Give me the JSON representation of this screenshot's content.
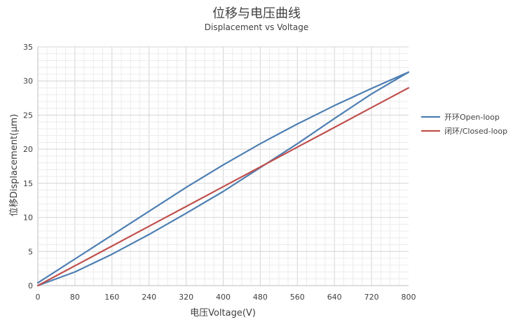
{
  "chart_data": {
    "type": "line",
    "title": "位移与电压曲线",
    "subtitle": "Displacement vs Voltage",
    "xlabel": "电压Voltage(V)",
    "ylabel": "位移Displacement(μm)",
    "xlim": [
      0,
      800
    ],
    "ylim": [
      0,
      35
    ],
    "xticks": [
      0,
      80,
      160,
      240,
      320,
      400,
      480,
      560,
      640,
      720,
      800
    ],
    "yticks": [
      0,
      5,
      10,
      15,
      20,
      25,
      30,
      35
    ],
    "grid": true,
    "legend_position": "right",
    "series": [
      {
        "name": "开环Open-loop",
        "color": "#4e7fb3",
        "x": [
          0,
          80,
          160,
          240,
          320,
          400,
          480,
          560,
          640,
          720,
          800,
          720,
          640,
          560,
          480,
          400,
          320,
          240,
          160,
          80,
          0
        ],
        "y": [
          0.4,
          3.9,
          7.4,
          10.9,
          14.4,
          17.7,
          20.8,
          23.7,
          26.4,
          28.9,
          31.3,
          28.1,
          24.5,
          20.8,
          17.3,
          13.8,
          10.6,
          7.5,
          4.6,
          2.0,
          0.0
        ]
      },
      {
        "name": "闭环/Closed-loop",
        "color": "#c0504d",
        "x": [
          0,
          80,
          160,
          240,
          320,
          400,
          480,
          560,
          640,
          720,
          800
        ],
        "y": [
          0.0,
          2.9,
          5.8,
          8.7,
          11.6,
          14.5,
          17.4,
          20.3,
          23.2,
          26.1,
          29.0
        ]
      }
    ]
  }
}
